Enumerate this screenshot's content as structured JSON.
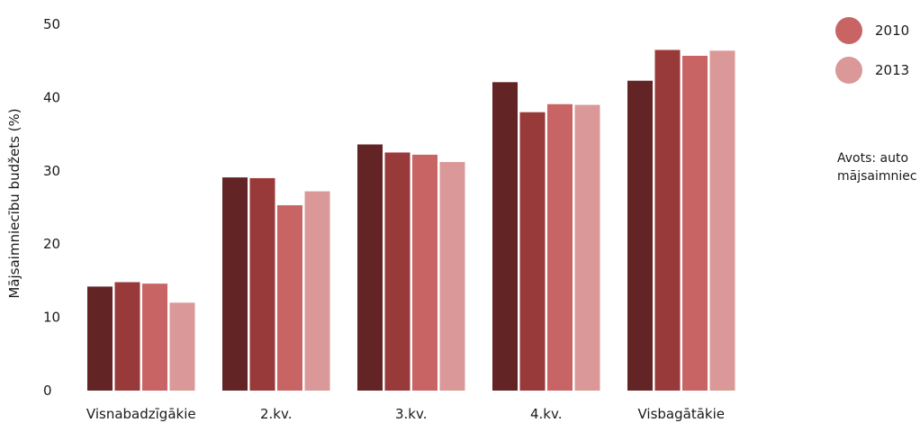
{
  "chart_data": {
    "type": "bar",
    "ylabel": "Mājsaimniecību budžets (%)",
    "ylim": [
      0,
      50
    ],
    "yticks": [
      0,
      10,
      20,
      30,
      40,
      50
    ],
    "categories": [
      "Visnabadzīgākie",
      "2.kv.",
      "3.kv.",
      "4.kv.",
      "Visbagātākie"
    ],
    "series": [
      {
        "name": "",
        "color": "#632426",
        "values": [
          14.2,
          29.1,
          33.6,
          42.1,
          42.3
        ]
      },
      {
        "name": "",
        "color": "#993a3a",
        "values": [
          14.8,
          29.0,
          32.5,
          38.0,
          46.5
        ]
      },
      {
        "name": "2010",
        "color": "#c86464",
        "values": [
          14.6,
          25.3,
          32.2,
          39.1,
          45.7
        ]
      },
      {
        "name": "2013",
        "color": "#da9898",
        "values": [
          12.0,
          27.2,
          31.2,
          39.0,
          46.4
        ]
      }
    ]
  },
  "legend": {
    "items": [
      {
        "label": "2010",
        "color": "#c86464"
      },
      {
        "label": "2013",
        "color": "#da9898"
      }
    ]
  },
  "source_note": "Avots: auto\nmājsaimniec"
}
